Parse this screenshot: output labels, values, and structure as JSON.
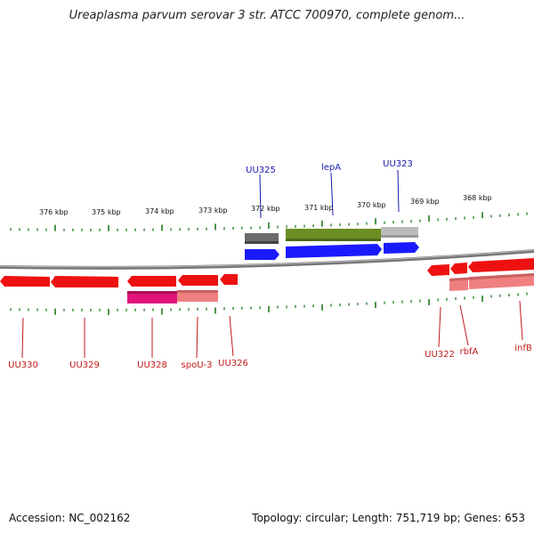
{
  "title": "Ureaplasma parvum serovar 3 str. ATCC 700970, complete genom...",
  "footer": {
    "accession": "Accession: NC_002162",
    "summary": "Topology: circular; Length: 751,719 bp; Genes: 653"
  },
  "colors": {
    "forward_gene": "#1a1aff",
    "reverse_gene": "#ee1111",
    "forward_label": "#1a1ab0",
    "reverse_label": "#c01818",
    "tick": "#1f7a1f",
    "backbone": "#777777",
    "feature_grey": "#6b6b6b",
    "feature_olive": "#6b8e23",
    "feature_light_grey": "#bbbbbb",
    "feature_magenta": "#e0157a",
    "feature_salmon": "#f08080"
  },
  "scale_labels": [
    "376 kbp",
    "375 kbp",
    "374 kbp",
    "373 kbp",
    "372 kbp",
    "371 kbp",
    "370 kbp",
    "369 kbp",
    "368 kbp"
  ],
  "forward_genes": [
    "UU325",
    "lepA",
    "UU323"
  ],
  "reverse_genes": [
    "UU330",
    "UU329",
    "UU328",
    "spoU-3",
    "UU326",
    "UU322",
    "rbfA",
    "infB"
  ]
}
